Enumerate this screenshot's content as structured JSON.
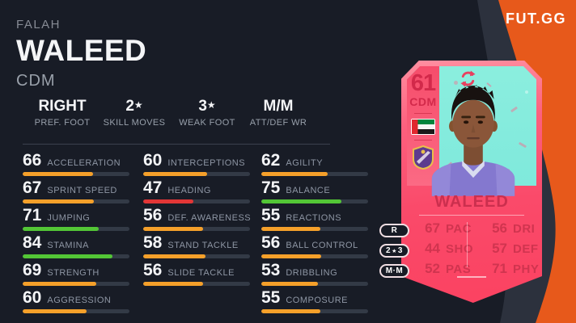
{
  "brand": {
    "logo_text": "FUT.GG"
  },
  "player_header": {
    "first_name": "FALAH",
    "last_name": "WALEED",
    "position": "CDM"
  },
  "meta": [
    {
      "value": "RIGHT",
      "label": "PREF. FOOT"
    },
    {
      "value": "2★",
      "label": "SKILL MOVES"
    },
    {
      "value": "3★",
      "label": "WEAK FOOT"
    },
    {
      "value": "M/M",
      "label": "ATT/DEF WR"
    }
  ],
  "stats": {
    "columns": [
      [
        {
          "value": 66,
          "label": "ACCELERATION",
          "tier": "orange"
        },
        {
          "value": 67,
          "label": "SPRINT SPEED",
          "tier": "orange"
        },
        {
          "value": 71,
          "label": "JUMPING",
          "tier": "green"
        },
        {
          "value": 84,
          "label": "STAMINA",
          "tier": "green"
        },
        {
          "value": 69,
          "label": "STRENGTH",
          "tier": "orange"
        },
        {
          "value": 60,
          "label": "AGGRESSION",
          "tier": "orange"
        }
      ],
      [
        {
          "value": 60,
          "label": "INTERCEPTIONS",
          "tier": "orange"
        },
        {
          "value": 47,
          "label": "HEADING",
          "tier": "red"
        },
        {
          "value": 56,
          "label": "DEF. AWARENESS",
          "tier": "orange"
        },
        {
          "value": 58,
          "label": "STAND TACKLE",
          "tier": "orange"
        },
        {
          "value": 56,
          "label": "SLIDE TACKLE",
          "tier": "orange"
        }
      ],
      [
        {
          "value": 62,
          "label": "AGILITY",
          "tier": "orange"
        },
        {
          "value": 75,
          "label": "BALANCE",
          "tier": "green"
        },
        {
          "value": 55,
          "label": "REACTIONS",
          "tier": "orange"
        },
        {
          "value": 56,
          "label": "BALL CONTROL",
          "tier": "orange"
        },
        {
          "value": 53,
          "label": "DRIBBLING",
          "tier": "orange"
        },
        {
          "value": 55,
          "label": "COMPOSURE",
          "tier": "orange"
        }
      ]
    ]
  },
  "card": {
    "rating": "61",
    "position": "CDM",
    "name": "WALEED",
    "nation_icon": "uae-flag",
    "club_icon": "al-ain-badge",
    "badges": [
      {
        "text": "R"
      },
      {
        "text": "2★3"
      },
      {
        "text": "M·M"
      }
    ],
    "face_stats": {
      "left": [
        {
          "value": "67",
          "label": "PAC"
        },
        {
          "value": "44",
          "label": "SHO"
        },
        {
          "value": "52",
          "label": "PAS"
        }
      ],
      "right": [
        {
          "value": "56",
          "label": "DRI"
        },
        {
          "value": "57",
          "label": "DEF"
        },
        {
          "value": "71",
          "label": "PHY"
        }
      ]
    }
  },
  "colors": {
    "background": "#181c26",
    "accent_orange": "#e7591b",
    "swoosh_charcoal": "#2c313d",
    "bar_green": "#53c636",
    "bar_orange": "#f5a02a",
    "bar_red": "#e23636",
    "bar_track": "#333a46",
    "card_pink": "#fb4f6e",
    "card_turquoise": "#7fe9dc",
    "card_text_crimson": "#d0344f"
  }
}
